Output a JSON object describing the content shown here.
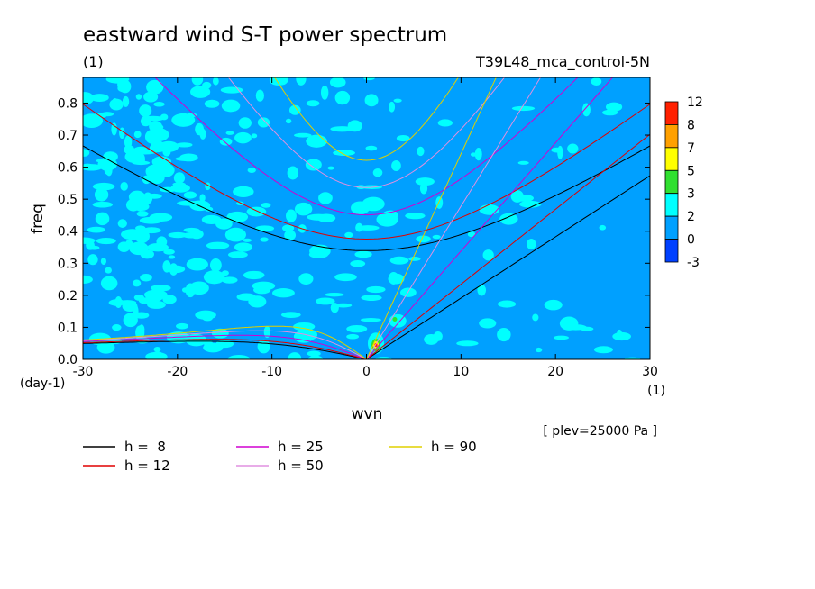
{
  "chart_data": {
    "type": "heatmap",
    "title": "eastward wind S-T power spectrum",
    "subtitle_left": "(1)",
    "subtitle_right": "T39L48_mca_control-5N",
    "xlabel": "wvn",
    "ylabel": "freq",
    "x_unit": "(1)",
    "y_unit": "(day-1)",
    "note": "[ plev=25000 Pa ]",
    "xlim": [
      -30,
      30
    ],
    "ylim": [
      0,
      0.88
    ],
    "xticks": [
      "-30",
      "-20",
      "-10",
      "0",
      "10",
      "20",
      "30"
    ],
    "yticks": [
      "0.0",
      "0.1",
      "0.2",
      "0.3",
      "0.4",
      "0.5",
      "0.6",
      "0.7",
      "0.8"
    ],
    "colorbar": {
      "levels": [
        "12",
        "8",
        "7",
        "5",
        "3",
        "2",
        "0",
        "-3"
      ],
      "colors": [
        "#ff2000",
        "#ffa000",
        "#ffff00",
        "#30e030",
        "#00ffff",
        "#00a0ff",
        "#0040ff"
      ]
    },
    "background_color": "#00a0ff",
    "dispersion_curves": [
      {
        "label": "h =  8",
        "equivalent_depth_m": 8,
        "color": "#000000"
      },
      {
        "label": "h = 12",
        "equivalent_depth_m": 12,
        "color": "#e00000"
      },
      {
        "label": "h = 25",
        "equivalent_depth_m": 25,
        "color": "#d000d0"
      },
      {
        "label": "h = 50",
        "equivalent_depth_m": 50,
        "color": "#e090e0"
      },
      {
        "label": "h = 90",
        "equivalent_depth_m": 90,
        "color": "#e0d000"
      }
    ]
  }
}
